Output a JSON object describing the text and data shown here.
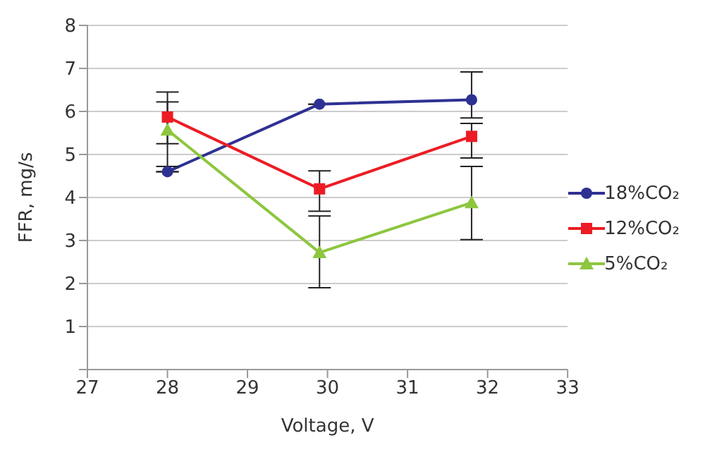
{
  "chart_data": {
    "type": "line",
    "xlabel": "Voltage, V",
    "ylabel": "FFR, mg/s",
    "xlim": [
      27,
      33
    ],
    "xticks": [
      27,
      28,
      29,
      30,
      31,
      32,
      33
    ],
    "ylim": [
      0,
      8
    ],
    "yticks": [
      {
        "value": 0,
        "label": null
      },
      1,
      2,
      3,
      4,
      5,
      6,
      7,
      8
    ],
    "grid": "y",
    "legend": "right",
    "line_style": "solid",
    "series": [
      {
        "name": "18%CO₂",
        "color": "#2e3192",
        "marker": "circle",
        "x": [
          28,
          29.9,
          31.8
        ],
        "values": [
          4.6,
          6.17,
          6.27
        ],
        "errors": [
          null,
          null,
          [
            5.85,
            6.92
          ]
        ]
      },
      {
        "name": "12%CO₂",
        "color": "#ed1c24",
        "marker": "square",
        "x": [
          28,
          29.9,
          31.8
        ],
        "values": [
          5.87,
          4.2,
          5.42
        ],
        "errors": [
          [
            5.25,
            6.45
          ],
          [
            3.68,
            4.62
          ],
          [
            4.92,
            5.72
          ]
        ]
      },
      {
        "name": "5%CO₂",
        "color": "#8dc63f",
        "marker": "triangle",
        "x": [
          28,
          29.9,
          31.8
        ],
        "values": [
          5.57,
          2.72,
          3.88
        ],
        "errors": [
          [
            4.72,
            6.22
          ],
          [
            1.9,
            3.57
          ],
          [
            3.02,
            4.72
          ]
        ]
      }
    ]
  }
}
